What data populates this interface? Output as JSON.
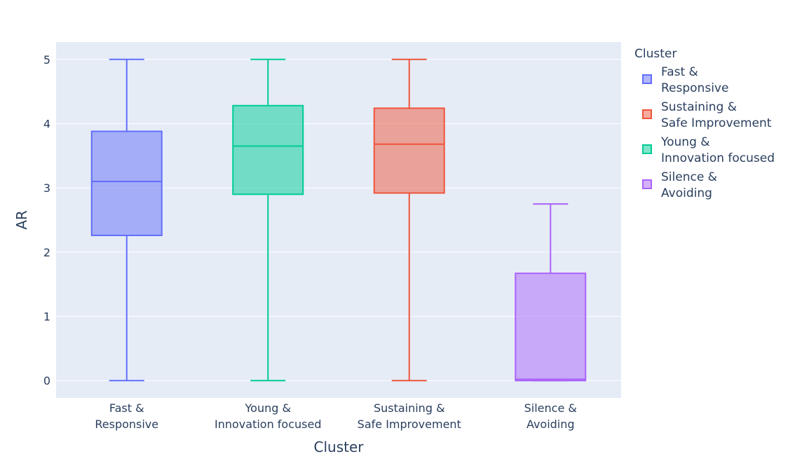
{
  "chart_data": {
    "type": "box",
    "xlabel": "Cluster",
    "ylabel": "AR",
    "ylim": [
      -0.27,
      5.27
    ],
    "yticks": [
      0,
      1,
      2,
      3,
      4,
      5
    ],
    "grid": true,
    "legend": {
      "title": "Cluster",
      "placement": "right",
      "entries": [
        {
          "lines": [
            "Fast &",
            "Responsive"
          ],
          "color": "#636efa"
        },
        {
          "lines": [
            "Sustaining &",
            "Safe Improvement"
          ],
          "color": "#ef553b"
        },
        {
          "lines": [
            "Young &",
            "Innovation focused"
          ],
          "color": "#00cc96"
        },
        {
          "lines": [
            "Silence &",
            "Avoiding"
          ],
          "color": "#ab63fa"
        }
      ]
    },
    "categories": [
      {
        "lines": [
          "Fast &",
          "Responsive"
        ]
      },
      {
        "lines": [
          "Young &",
          "Innovation focused"
        ]
      },
      {
        "lines": [
          "Sustaining &",
          "Safe Improvement"
        ]
      },
      {
        "lines": [
          "Silence &",
          "Avoiding"
        ]
      }
    ],
    "series": [
      {
        "name": "Fast & Responsive",
        "color": "#636efa",
        "category_index": 0,
        "min": 0,
        "q1": 2.26,
        "median": 3.1,
        "q3": 3.88,
        "max": 5
      },
      {
        "name": "Young & Innovation focused",
        "color": "#00cc96",
        "category_index": 1,
        "min": 0,
        "q1": 2.9,
        "median": 3.65,
        "q3": 4.28,
        "max": 5
      },
      {
        "name": "Sustaining & Safe Improvement",
        "color": "#ef553b",
        "category_index": 2,
        "min": 0,
        "q1": 2.92,
        "median": 3.68,
        "q3": 4.24,
        "max": 5
      },
      {
        "name": "Silence & Avoiding",
        "color": "#ab63fa",
        "category_index": 3,
        "min": 0,
        "q1": 0,
        "median": 0.02,
        "q3": 1.67,
        "max": 2.75
      }
    ]
  }
}
